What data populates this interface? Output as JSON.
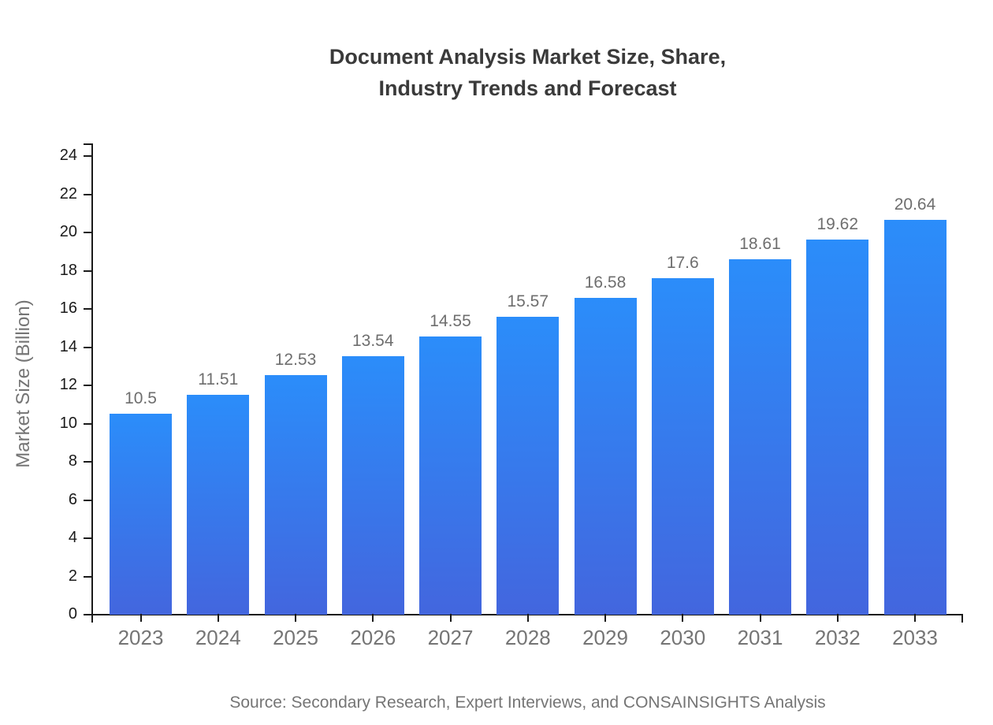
{
  "title": {
    "line1": "Document Analysis Market Size, Share,",
    "line2": "Industry Trends and Forecast"
  },
  "source": "Source: Secondary Research, Expert Interviews, and CONSAINSIGHTS Analysis",
  "colors": {
    "bar_gradient_top": "#2b8dfa",
    "bar_gradient_bottom": "#4366de",
    "axis": "#1a1a1a",
    "value_label": "#6e6e6e",
    "category_label": "#757575",
    "title_text": "#3a3a3a",
    "source_text": "#757575"
  },
  "chart_data": {
    "type": "bar",
    "title": "Document Analysis Market Size, Share, Industry Trends and Forecast",
    "categories": [
      "2023",
      "2024",
      "2025",
      "2026",
      "2027",
      "2028",
      "2029",
      "2030",
      "2031",
      "2032",
      "2033"
    ],
    "values": [
      10.5,
      11.51,
      12.53,
      13.54,
      14.55,
      15.57,
      16.58,
      17.6,
      18.61,
      19.62,
      20.64
    ],
    "xlabel": "",
    "ylabel": "Market Size (Billion)",
    "ylim": [
      0,
      24
    ],
    "ytick_step": 2,
    "grid": false,
    "legend": "none",
    "bar_labels_shown": true
  }
}
